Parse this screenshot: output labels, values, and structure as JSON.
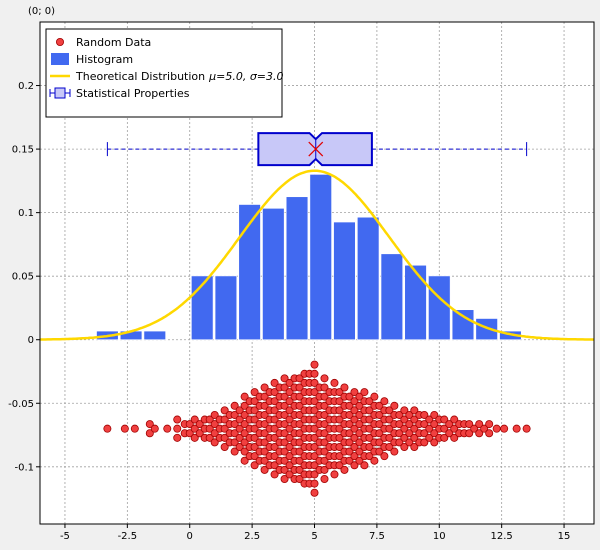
{
  "corner_label": "(0; 0)",
  "chart_data": {
    "type": "histogram-with-boxplot-and-beeswarm",
    "xlim": [
      -6,
      16.2
    ],
    "ylim": [
      -0.145,
      0.25
    ],
    "x_ticks": [
      -5,
      -2.5,
      0,
      2.5,
      5,
      7.5,
      10,
      12.5,
      15
    ],
    "x_tick_labels": [
      "-5",
      "-2.5",
      "0",
      "2.5",
      "5",
      "7.5",
      "10",
      "12.5",
      "15"
    ],
    "y_ticks": [
      -0.1,
      -0.05,
      0,
      0.05,
      0.1,
      0.15,
      0.2
    ],
    "y_tick_labels": [
      "-0.1",
      "-0.05",
      "0",
      "0.05",
      "0.1",
      "0.15",
      "0.2"
    ],
    "grid": true,
    "legend_position": "top-left",
    "legend": [
      {
        "name": "Random Data",
        "symbol": "circle"
      },
      {
        "name": "Histogram",
        "symbol": "bar"
      },
      {
        "name": "Theoretical Distribution",
        "suffix": "μ=5.0, σ=3.0",
        "symbol": "line"
      },
      {
        "name": "Statistical Properties",
        "symbol": "boxplot"
      }
    ],
    "histogram": {
      "bin_width": 0.95,
      "bins": [
        {
          "x": -3.3,
          "y": 0.0068
        },
        {
          "x": -2.35,
          "y": 0.0068
        },
        {
          "x": -1.4,
          "y": 0.0068
        },
        {
          "x": -0.45,
          "y": 0.0
        },
        {
          "x": 0.5,
          "y": 0.0502
        },
        {
          "x": 1.45,
          "y": 0.0502
        },
        {
          "x": 2.4,
          "y": 0.1064
        },
        {
          "x": 3.35,
          "y": 0.1034
        },
        {
          "x": 4.3,
          "y": 0.1125
        },
        {
          "x": 5.25,
          "y": 0.1301
        },
        {
          "x": 6.2,
          "y": 0.0926
        },
        {
          "x": 7.15,
          "y": 0.0964
        },
        {
          "x": 8.1,
          "y": 0.0676
        },
        {
          "x": 9.05,
          "y": 0.0586
        },
        {
          "x": 10.0,
          "y": 0.0502
        },
        {
          "x": 10.95,
          "y": 0.0236
        },
        {
          "x": 11.9,
          "y": 0.0167
        },
        {
          "x": 12.85,
          "y": 0.0068
        }
      ]
    },
    "distribution": {
      "mu": 5.0,
      "sigma": 3.0,
      "x_range": [
        -6,
        16.2
      ]
    },
    "boxplot": {
      "y": 0.15,
      "min": -3.3,
      "q1": 2.75,
      "median": 5.05,
      "mean": 5.05,
      "q3": 7.3,
      "max": 13.5,
      "notch_low": 4.8,
      "notch_high": 5.3
    },
    "scatter": {
      "center_y": -0.07,
      "column_x": [
        -3.3,
        -2.6,
        -2.2,
        -1.6,
        -1.4,
        -0.9,
        -0.5,
        -0.2,
        0.0,
        0.2,
        0.4,
        0.6,
        0.8,
        1.0,
        1.2,
        1.4,
        1.6,
        1.8,
        2.0,
        2.2,
        2.4,
        2.6,
        2.8,
        3.0,
        3.2,
        3.4,
        3.6,
        3.8,
        4.0,
        4.2,
        4.4,
        4.6,
        4.8,
        5.0,
        5.2,
        5.4,
        5.6,
        5.8,
        6.0,
        6.2,
        6.4,
        6.6,
        6.8,
        7.0,
        7.2,
        7.4,
        7.6,
        7.8,
        8.0,
        8.2,
        8.4,
        8.6,
        8.8,
        9.0,
        9.2,
        9.4,
        9.6,
        9.8,
        10.0,
        10.2,
        10.4,
        10.6,
        10.8,
        11.0,
        11.2,
        11.4,
        11.6,
        11.8,
        12.0,
        12.3,
        12.6,
        13.1,
        13.5
      ],
      "column_counts": [
        1,
        1,
        1,
        2,
        1,
        1,
        3,
        2,
        2,
        3,
        2,
        3,
        3,
        4,
        3,
        5,
        4,
        6,
        5,
        8,
        7,
        9,
        8,
        10,
        9,
        11,
        10,
        12,
        11,
        12,
        12,
        13,
        13,
        15,
        10,
        12,
        9,
        11,
        9,
        10,
        8,
        9,
        8,
        9,
        7,
        8,
        6,
        7,
        5,
        6,
        4,
        5,
        4,
        5,
        4,
        4,
        3,
        4,
        3,
        3,
        2,
        3,
        2,
        2,
        2,
        1,
        2,
        1,
        2,
        1,
        1,
        1,
        1
      ],
      "dot_spacing_y": 0.0036
    }
  }
}
